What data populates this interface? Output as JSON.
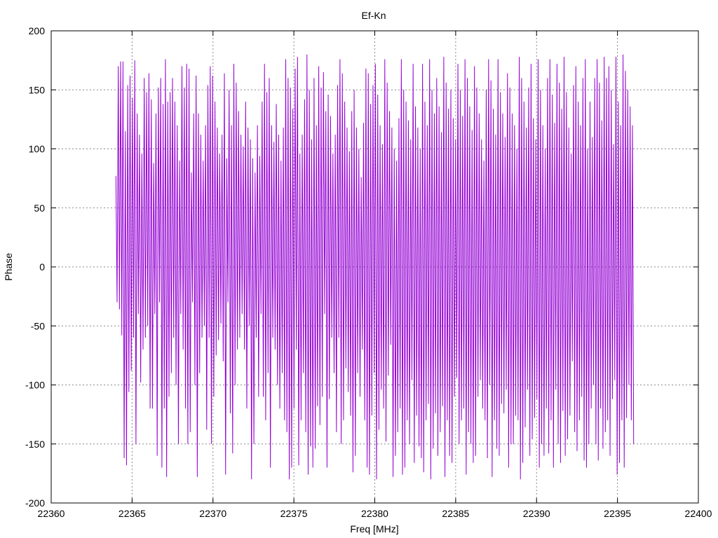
{
  "chart_data": {
    "type": "line",
    "title": "Ef-Kn",
    "xlabel": "Freq [MHz]",
    "ylabel": "Phase",
    "xlim": [
      22360,
      22400
    ],
    "ylim": [
      -200,
      200
    ],
    "xticks": [
      22360,
      22365,
      22370,
      22375,
      22380,
      22385,
      22390,
      22395,
      22400
    ],
    "yticks": [
      -200,
      -150,
      -100,
      -50,
      0,
      50,
      100,
      150,
      200
    ],
    "grid": true,
    "legend": "none",
    "series": [
      {
        "color": "#9400d3",
        "x_start": 22364.0,
        "x_end": 22396.0,
        "values": [
          77,
          -30,
          170,
          -36,
          174,
          -58,
          174,
          -162,
          115,
          -168,
          154,
          -106,
          162,
          -88,
          143,
          -60,
          175,
          -150,
          130,
          -40,
          112,
          -98,
          96,
          -70,
          160,
          -60,
          148,
          -50,
          164,
          -120,
          142,
          -120,
          88,
          -40,
          130,
          -160,
          152,
          -30,
          160,
          -170,
          138,
          -120,
          176,
          -178,
          140,
          -110,
          148,
          -90,
          160,
          -60,
          140,
          -100,
          120,
          -150,
          90,
          -40,
          170,
          -70,
          152,
          -120,
          172,
          -150,
          168,
          -140,
          80,
          -30,
          130,
          -100,
          162,
          -178,
          130,
          -90,
          112,
          -60,
          90,
          -50,
          120,
          -138,
          154,
          -60,
          170,
          -150,
          162,
          -110,
          140,
          -75,
          118,
          -62,
          96,
          -48,
          112,
          -80,
          164,
          -176,
          92,
          -30,
          150,
          -124,
          120,
          -158,
          172,
          -100,
          156,
          -70,
          132,
          -60,
          112,
          -40,
          102,
          -70,
          140,
          -120,
          118,
          -50,
          108,
          -180,
          92,
          -150,
          80,
          -60,
          120,
          -110,
          94,
          -40,
          140,
          -110,
          172,
          -130,
          148,
          -90,
          160,
          -170,
          120,
          -60,
          106,
          -70,
          138,
          -100,
          112,
          -120,
          90,
          -90,
          118,
          -130,
          176,
          -140,
          160,
          -180,
          152,
          -170,
          134,
          -120,
          168,
          -70,
          178,
          -168,
          96,
          -130,
          112,
          -90,
          142,
          -140,
          180,
          -176,
          150,
          -152,
          108,
          -170,
          160,
          -154,
          120,
          -118,
          170,
          -134,
          152,
          -110,
          165,
          -40,
          132,
          -170,
          146,
          -112,
          128,
          -60,
          96,
          -90,
          112,
          -140,
          154,
          -60,
          176,
          -150,
          164,
          -130,
          140,
          -86,
          118,
          -106,
          98,
          -126,
          132,
          -174,
          150,
          -160,
          118,
          -90,
          100,
          -110,
          76,
          -70,
          122,
          -130,
          168,
          -170,
          164,
          -176,
          138,
          -126,
          154,
          -90,
          172,
          -180,
          146,
          -138,
          120,
          -104,
          104,
          -120,
          176,
          -148,
          156,
          -92,
          132,
          -66,
          118,
          -178,
          100,
          -160,
          90,
          -140,
          126,
          -120,
          176,
          -176,
          150,
          -170,
          140,
          -130,
          124,
          -150,
          108,
          -96,
          172,
          -166,
          136,
          -126,
          118,
          -152,
          100,
          -162,
          172,
          -174,
          140,
          -130,
          120,
          -116,
          176,
          -180,
          150,
          -154,
          130,
          -124,
          160,
          -160,
          136,
          -140,
          114,
          -118,
          178,
          -178,
          156,
          -130,
          134,
          -160,
          150,
          -166,
          126,
          -110,
          108,
          -94,
          172,
          -150,
          150,
          -130,
          128,
          -120,
          176,
          -176,
          160,
          -140,
          136,
          -150,
          116,
          -166,
          170,
          -160,
          152,
          -110,
          130,
          -96,
          108,
          -120,
          90,
          -130,
          150,
          -162,
          176,
          -100,
          158,
          -178,
          134,
          -130,
          112,
          -154,
          176,
          -160,
          148,
          -116,
          130,
          -124,
          110,
          -104,
          164,
          -170,
          152,
          -150,
          130,
          -150,
          120,
          -126,
          100,
          -130,
          178,
          -180,
          160,
          -166,
          140,
          -136,
          118,
          -104,
          152,
          -160,
          172,
          -146,
          126,
          -128,
          108,
          -112,
          176,
          -170,
          150,
          -150,
          120,
          -160,
          100,
          -120,
          160,
          -158,
          176,
          -130,
          146,
          -170,
          122,
          -104,
          172,
          -150,
          156,
          -166,
          134,
          -122,
          178,
          -160,
          148,
          -146,
          118,
          -126,
          96,
          -80,
          154,
          -140,
          170,
          -156,
          140,
          -130,
          120,
          -110,
          160,
          -164,
          176,
          -170,
          100,
          -150,
          140,
          -120,
          110,
          -100,
          160,
          -150,
          176,
          -164,
          156,
          -120,
          124,
          -154,
          178,
          -140,
          160,
          -130,
          170,
          -160,
          150,
          -112,
          104,
          -96,
          178,
          -176,
          140,
          -166,
          120,
          -130,
          180,
          -170,
          166,
          -128,
          150,
          -100,
          136,
          -130,
          120,
          -150
        ]
      }
    ]
  }
}
